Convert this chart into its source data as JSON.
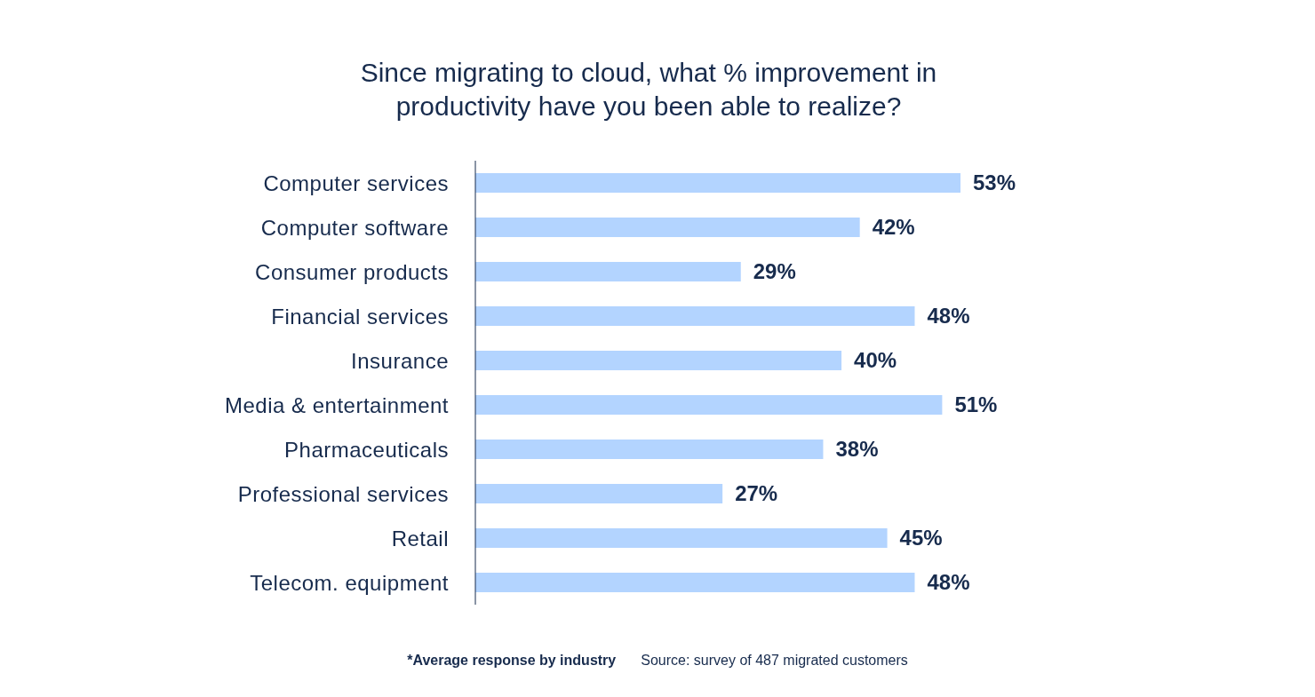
{
  "chart_data": {
    "type": "bar",
    "orientation": "horizontal",
    "title": "Since migrating to cloud, what % improvement in productivity have you been able to realize?",
    "categories": [
      "Computer services",
      "Computer software",
      "Consumer products",
      "Financial services",
      "Insurance",
      "Media & entertainment",
      "Pharmaceuticals",
      "Professional services",
      "Retail",
      "Telecom. equipment"
    ],
    "values": [
      53,
      42,
      29,
      48,
      40,
      51,
      38,
      27,
      45,
      48
    ],
    "value_labels": [
      "53%",
      "42%",
      "29%",
      "48%",
      "40%",
      "51%",
      "38%",
      "27%",
      "45%",
      "48%"
    ],
    "color": "#b3d4ff",
    "grid": false,
    "legend": false,
    "annotations": [
      "*Average response by industry",
      "Source: survey of 487 migrated customers"
    ]
  }
}
